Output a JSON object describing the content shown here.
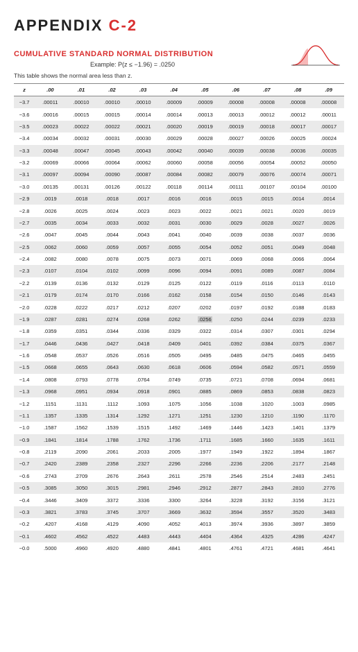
{
  "appendix_label": "APPENDIX ",
  "appendix_code": "C-2",
  "section_title": "CUMULATIVE STANDARD NORMAL DISTRIBUTION",
  "example_text": "Example: P(z ≤ −1.96) = .0250",
  "note_text": "This table shows the normal area less than z.",
  "highlight": {
    "row": 18,
    "col": 6
  },
  "columns": [
    "z",
    ".00",
    ".01",
    ".02",
    ".03",
    ".04",
    ".05",
    ".06",
    ".07",
    ".08",
    ".09"
  ],
  "rows": [
    [
      "−3.7",
      ".00011",
      ".00010",
      ".00010",
      ".00010",
      ".00009",
      ".00009",
      ".00008",
      ".00008",
      ".00008",
      ".00008"
    ],
    [
      "−3.6",
      ".00016",
      ".00015",
      ".00015",
      ".00014",
      ".00014",
      ".00013",
      ".00013",
      ".00012",
      ".00012",
      ".00011"
    ],
    [
      "−3.5",
      ".00023",
      ".00022",
      ".00022",
      ".00021",
      ".00020",
      ".00019",
      ".00019",
      ".00018",
      ".00017",
      ".00017"
    ],
    [
      "−3.4",
      ".00034",
      ".00032",
      ".00031",
      ".00030",
      ".00029",
      ".00028",
      ".00027",
      ".00026",
      ".00025",
      ".00024"
    ],
    [
      "−3.3",
      ".00048",
      ".00047",
      ".00045",
      ".00043",
      ".00042",
      ".00040",
      ".00039",
      ".00038",
      ".00036",
      ".00035"
    ],
    [
      "−3.2",
      ".00069",
      ".00066",
      ".00064",
      ".00062",
      ".00060",
      ".00058",
      ".00056",
      ".00054",
      ".00052",
      ".00050"
    ],
    [
      "−3.1",
      ".00097",
      ".00094",
      ".00090",
      ".00087",
      ".00084",
      ".00082",
      ".00079",
      ".00076",
      ".00074",
      ".00071"
    ],
    [
      "−3.0",
      ".00135",
      ".00131",
      ".00126",
      ".00122",
      ".00118",
      ".00114",
      ".00111",
      ".00107",
      ".00104",
      ".00100"
    ],
    [
      "−2.9",
      ".0019",
      ".0018",
      ".0018",
      ".0017",
      ".0016",
      ".0016",
      ".0015",
      ".0015",
      ".0014",
      ".0014"
    ],
    [
      "−2.8",
      ".0026",
      ".0025",
      ".0024",
      ".0023",
      ".0023",
      ".0022",
      ".0021",
      ".0021",
      ".0020",
      ".0019"
    ],
    [
      "−2.7",
      ".0035",
      ".0034",
      ".0033",
      ".0032",
      ".0031",
      ".0030",
      ".0029",
      ".0028",
      ".0027",
      ".0026"
    ],
    [
      "−2.6",
      ".0047",
      ".0045",
      ".0044",
      ".0043",
      ".0041",
      ".0040",
      ".0039",
      ".0038",
      ".0037",
      ".0036"
    ],
    [
      "−2.5",
      ".0062",
      ".0060",
      ".0059",
      ".0057",
      ".0055",
      ".0054",
      ".0052",
      ".0051",
      ".0049",
      ".0048"
    ],
    [
      "−2.4",
      ".0082",
      ".0080",
      ".0078",
      ".0075",
      ".0073",
      ".0071",
      ".0069",
      ".0068",
      ".0066",
      ".0064"
    ],
    [
      "−2.3",
      ".0107",
      ".0104",
      ".0102",
      ".0099",
      ".0096",
      ".0094",
      ".0091",
      ".0089",
      ".0087",
      ".0084"
    ],
    [
      "−2.2",
      ".0139",
      ".0136",
      ".0132",
      ".0129",
      ".0125",
      ".0122",
      ".0119",
      ".0116",
      ".0113",
      ".0110"
    ],
    [
      "−2.1",
      ".0179",
      ".0174",
      ".0170",
      ".0166",
      ".0162",
      ".0158",
      ".0154",
      ".0150",
      ".0146",
      ".0143"
    ],
    [
      "−2.0",
      ".0228",
      ".0222",
      ".0217",
      ".0212",
      ".0207",
      ".0202",
      ".0197",
      ".0192",
      ".0188",
      ".0183"
    ],
    [
      "−1.9",
      ".0287",
      ".0281",
      ".0274",
      ".0268",
      ".0262",
      ".0256",
      ".0250",
      ".0244",
      ".0239",
      ".0233"
    ],
    [
      "−1.8",
      ".0359",
      ".0351",
      ".0344",
      ".0336",
      ".0329",
      ".0322",
      ".0314",
      ".0307",
      ".0301",
      ".0294"
    ],
    [
      "−1.7",
      ".0446",
      ".0436",
      ".0427",
      ".0418",
      ".0409",
      ".0401",
      ".0392",
      ".0384",
      ".0375",
      ".0367"
    ],
    [
      "−1.6",
      ".0548",
      ".0537",
      ".0526",
      ".0516",
      ".0505",
      ".0495",
      ".0485",
      ".0475",
      ".0465",
      ".0455"
    ],
    [
      "−1.5",
      ".0668",
      ".0655",
      ".0643",
      ".0630",
      ".0618",
      ".0606",
      ".0594",
      ".0582",
      ".0571",
      ".0559"
    ],
    [
      "−1.4",
      ".0808",
      ".0793",
      ".0778",
      ".0764",
      ".0749",
      ".0735",
      ".0721",
      ".0708",
      ".0694",
      ".0681"
    ],
    [
      "−1.3",
      ".0968",
      ".0951",
      ".0934",
      ".0918",
      ".0901",
      ".0885",
      ".0869",
      ".0853",
      ".0838",
      ".0823"
    ],
    [
      "−1.2",
      ".1151",
      ".1131",
      ".1112",
      ".1093",
      ".1075",
      ".1056",
      ".1038",
      ".1020",
      ".1003",
      ".0985"
    ],
    [
      "−1.1",
      ".1357",
      ".1335",
      ".1314",
      ".1292",
      ".1271",
      ".1251",
      ".1230",
      ".1210",
      ".1190",
      ".1170"
    ],
    [
      "−1.0",
      ".1587",
      ".1562",
      ".1539",
      ".1515",
      ".1492",
      ".1469",
      ".1446",
      ".1423",
      ".1401",
      ".1379"
    ],
    [
      "−0.9",
      ".1841",
      ".1814",
      ".1788",
      ".1762",
      ".1736",
      ".1711",
      ".1685",
      ".1660",
      ".1635",
      ".1611"
    ],
    [
      "−0.8",
      ".2119",
      ".2090",
      ".2061",
      ".2033",
      ".2005",
      ".1977",
      ".1949",
      ".1922",
      ".1894",
      ".1867"
    ],
    [
      "−0.7",
      ".2420",
      ".2389",
      ".2358",
      ".2327",
      ".2296",
      ".2266",
      ".2236",
      ".2206",
      ".2177",
      ".2148"
    ],
    [
      "−0.6",
      ".2743",
      ".2709",
      ".2676",
      ".2643",
      ".2611",
      ".2578",
      ".2546",
      ".2514",
      ".2483",
      ".2451"
    ],
    [
      "−0.5",
      ".3085",
      ".3050",
      ".3015",
      ".2981",
      ".2946",
      ".2912",
      ".2877",
      ".2843",
      ".2810",
      ".2776"
    ],
    [
      "−0.4",
      ".3446",
      ".3409",
      ".3372",
      ".3336",
      ".3300",
      ".3264",
      ".3228",
      ".3192",
      ".3156",
      ".3121"
    ],
    [
      "−0.3",
      ".3821",
      ".3783",
      ".3745",
      ".3707",
      ".3669",
      ".3632",
      ".3594",
      ".3557",
      ".3520",
      ".3483"
    ],
    [
      "−0.2",
      ".4207",
      ".4168",
      ".4129",
      ".4090",
      ".4052",
      ".4013",
      ".3974",
      ".3936",
      ".3897",
      ".3859"
    ],
    [
      "−0.1",
      ".4602",
      ".4562",
      ".4522",
      ".4483",
      ".4443",
      ".4404",
      ".4364",
      ".4325",
      ".4286",
      ".4247"
    ],
    [
      "−0.0",
      ".5000",
      ".4960",
      ".4920",
      ".4880",
      ".4841",
      ".4801",
      ".4761",
      ".4721",
      ".4681",
      ".4641"
    ]
  ],
  "curve": {
    "stroke": "#d92f2f",
    "fill": "#f7b8b8",
    "width": 70,
    "height": 40
  }
}
